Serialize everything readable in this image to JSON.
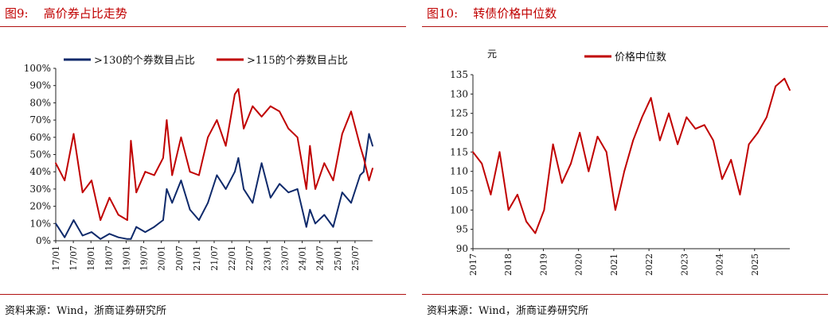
{
  "left": {
    "figure_label": "图9:",
    "figure_title": "高价券占比走势",
    "source": "资料来源：Wind，浙商证券研究所"
  },
  "right": {
    "figure_label": "图10:",
    "figure_title": "转债价格中位数",
    "source": "资料来源：Wind，浙商证券研究所"
  },
  "chart_data": [
    {
      "type": "line",
      "title": "高价券占比走势",
      "xlabel": "",
      "ylabel": "",
      "ylim": [
        0,
        100
      ],
      "y_ticks": [
        "0%",
        "10%",
        "20%",
        "30%",
        "40%",
        "50%",
        "60%",
        "70%",
        "80%",
        "90%",
        "100%"
      ],
      "x_ticks": [
        "17/01",
        "17/07",
        "18/01",
        "18/07",
        "19/01",
        "19/07",
        "20/01",
        "20/07",
        "21/01",
        "21/07",
        "22/01",
        "22/07",
        "23/01",
        "23/07",
        "24/01",
        "24/07",
        "25/01",
        "25/07"
      ],
      "legend": "top",
      "x": [
        2017.0,
        2017.25,
        2017.5,
        2017.75,
        2018.0,
        2018.25,
        2018.5,
        2018.75,
        2019.0,
        2019.1,
        2019.25,
        2019.5,
        2019.75,
        2020.0,
        2020.1,
        2020.25,
        2020.5,
        2020.75,
        2021.0,
        2021.25,
        2021.5,
        2021.75,
        2022.0,
        2022.1,
        2022.25,
        2022.5,
        2022.75,
        2023.0,
        2023.25,
        2023.5,
        2023.75,
        2024.0,
        2024.1,
        2024.25,
        2024.5,
        2024.75,
        2025.0,
        2025.25,
        2025.5,
        2025.6,
        2025.75,
        2025.85
      ],
      "series": [
        {
          "name": ">130的个券数目占比",
          "color": "#0f2a6b",
          "values": [
            10,
            2,
            12,
            3,
            5,
            1,
            4,
            2,
            1,
            1,
            8,
            5,
            8,
            12,
            30,
            22,
            35,
            18,
            12,
            22,
            38,
            30,
            40,
            48,
            30,
            22,
            45,
            25,
            33,
            28,
            30,
            8,
            18,
            10,
            15,
            8,
            28,
            22,
            38,
            40,
            62,
            55
          ]
        },
        {
          "name": ">115的个券数目占比",
          "color": "#c00000",
          "values": [
            45,
            35,
            62,
            28,
            35,
            12,
            25,
            15,
            12,
            58,
            28,
            40,
            38,
            48,
            70,
            38,
            60,
            40,
            38,
            60,
            70,
            55,
            85,
            88,
            65,
            78,
            72,
            78,
            75,
            65,
            60,
            30,
            55,
            30,
            45,
            35,
            62,
            75,
            55,
            48,
            35,
            42
          ]
        }
      ]
    },
    {
      "type": "line",
      "title": "转债价格中位数",
      "ylabel": "元",
      "xlabel": "",
      "ylim": [
        90,
        135
      ],
      "y_ticks": [
        "90",
        "95",
        "100",
        "105",
        "110",
        "115",
        "120",
        "125",
        "130",
        "135"
      ],
      "x_ticks": [
        "2017",
        "2018",
        "2019",
        "2020",
        "2021",
        "2022",
        "2023",
        "2024",
        "2025"
      ],
      "legend": "top",
      "x": [
        2017.0,
        2017.25,
        2017.5,
        2017.75,
        2018.0,
        2018.25,
        2018.5,
        2018.75,
        2019.0,
        2019.25,
        2019.5,
        2019.75,
        2020.0,
        2020.25,
        2020.5,
        2020.75,
        2021.0,
        2021.25,
        2021.5,
        2021.75,
        2022.0,
        2022.25,
        2022.5,
        2022.75,
        2023.0,
        2023.25,
        2023.5,
        2023.75,
        2024.0,
        2024.25,
        2024.5,
        2024.75,
        2025.0,
        2025.25,
        2025.5,
        2025.75,
        2025.9
      ],
      "series": [
        {
          "name": "价格中位数",
          "color": "#c00000",
          "values": [
            115,
            112,
            104,
            115,
            100,
            104,
            97,
            94,
            100,
            117,
            107,
            112,
            120,
            110,
            119,
            115,
            100,
            110,
            118,
            124,
            129,
            118,
            125,
            117,
            124,
            121,
            122,
            118,
            108,
            113,
            104,
            117,
            120,
            124,
            132,
            134,
            131
          ]
        }
      ]
    }
  ]
}
